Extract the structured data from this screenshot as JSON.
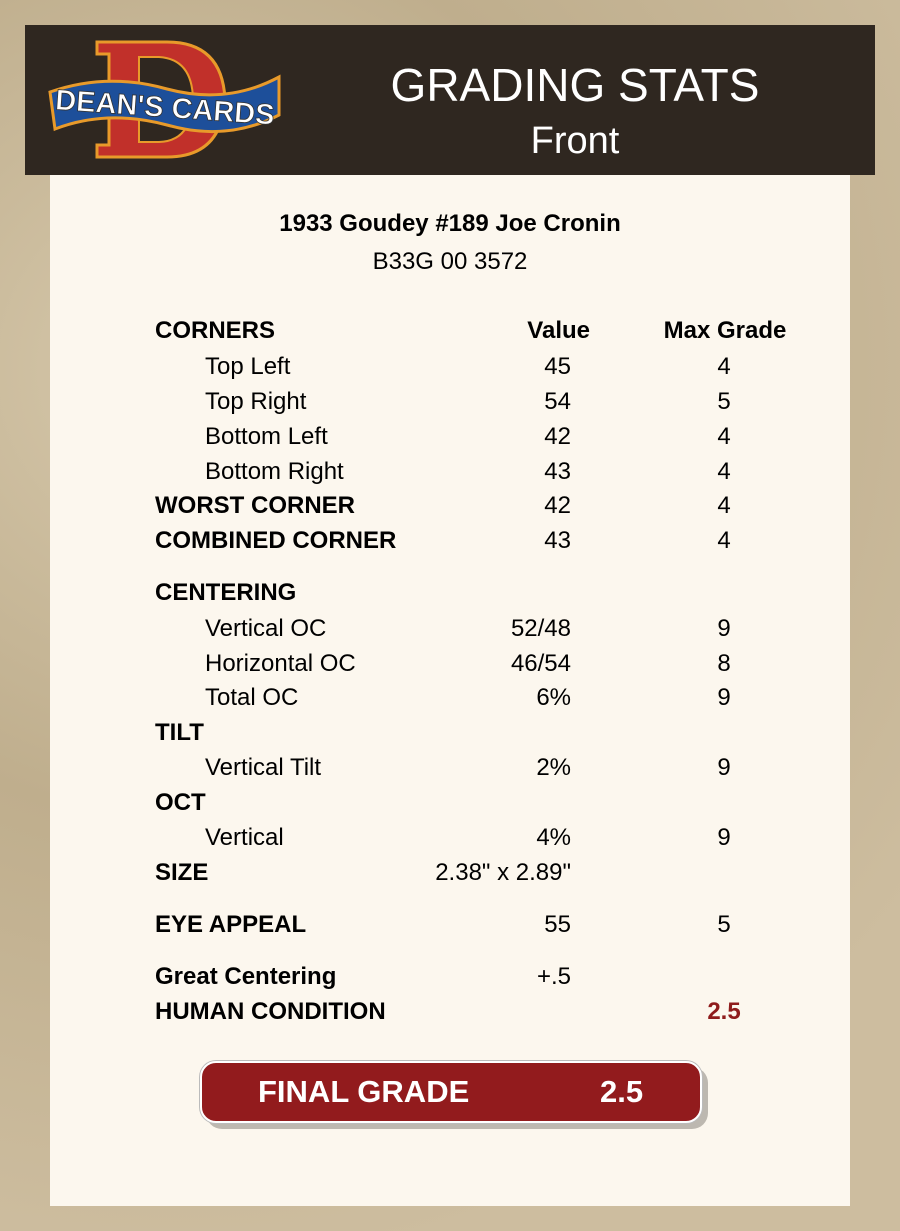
{
  "header": {
    "logo_text": "DEAN'S CARDS",
    "title": "GRADING STATS",
    "subtitle": "Front"
  },
  "card": {
    "name": "1933 Goudey #189 Joe Cronin",
    "cert": "B33G 00 3572"
  },
  "columns": {
    "value": "Value",
    "max_grade": "Max Grade"
  },
  "rows": [
    {
      "type": "section",
      "label": "CORNERS",
      "value": "",
      "max": ""
    },
    {
      "type": "item",
      "label": "Top Left",
      "value": "45",
      "max": "4"
    },
    {
      "type": "item",
      "label": "Top Right",
      "value": "54",
      "max": "5"
    },
    {
      "type": "item",
      "label": "Bottom Left",
      "value": "42",
      "max": "4"
    },
    {
      "type": "item",
      "label": "Bottom Right",
      "value": "43",
      "max": "4"
    },
    {
      "type": "section",
      "label": "WORST CORNER",
      "value": "42",
      "max": "4"
    },
    {
      "type": "section",
      "label": "COMBINED CORNER",
      "value": "43",
      "max": "4"
    },
    {
      "type": "section",
      "label": "CENTERING",
      "value": "",
      "max": ""
    },
    {
      "type": "item",
      "label": "Vertical OC",
      "value": "52/48",
      "max": "9"
    },
    {
      "type": "item",
      "label": "Horizontal OC",
      "value": "46/54",
      "max": "8"
    },
    {
      "type": "item",
      "label": "Total OC",
      "value": "6%",
      "max": "9"
    },
    {
      "type": "section",
      "label": "TILT",
      "value": "",
      "max": ""
    },
    {
      "type": "item",
      "label": "Vertical Tilt",
      "value": "2%",
      "max": "9"
    },
    {
      "type": "section",
      "label": "OCT",
      "value": "",
      "max": ""
    },
    {
      "type": "item",
      "label": "Vertical",
      "value": "4%",
      "max": "9"
    },
    {
      "type": "section",
      "label": "SIZE",
      "value": "2.38\" x 2.89\"",
      "max": ""
    },
    {
      "type": "section",
      "label": "EYE APPEAL",
      "value": "55",
      "max": "5"
    },
    {
      "type": "section",
      "label": "Great Centering",
      "value": "+.5",
      "max": ""
    },
    {
      "type": "section",
      "label": "HUMAN CONDITION",
      "value": "",
      "max": "2.5",
      "max_color": "#8f1c1c"
    }
  ],
  "final": {
    "label": "FINAL GRADE",
    "value": "2.5",
    "color": "#921b1d"
  }
}
